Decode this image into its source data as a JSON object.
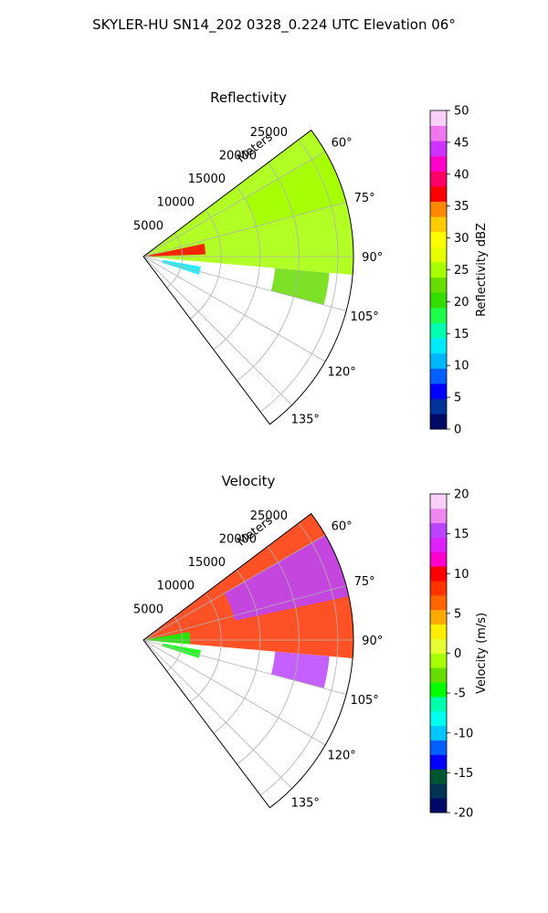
{
  "title": "SKYLER-HU  SN14_202  0328_0.224 UTC Elevation 06°",
  "chart_data": [
    {
      "type": "heatmap",
      "projection": "polar-sector",
      "title": "Reflectivity",
      "radial_label": "Meters",
      "radial_ticks": [
        "5000",
        "10000",
        "15000",
        "20000",
        "25000"
      ],
      "radial_tick_values": [
        5000,
        10000,
        15000,
        20000,
        25000
      ],
      "radial_max": 27000,
      "azimuth_range": [
        53,
        143
      ],
      "azimuth_ticks": [
        "60°",
        "75°",
        "90°",
        "105°",
        "120°",
        "135°"
      ],
      "azimuth_tick_values": [
        60,
        75,
        90,
        105,
        120,
        135
      ],
      "grid": true,
      "colorbar": {
        "label": "Reflectivity dBZ",
        "range": [
          0,
          50
        ],
        "ticks": [
          "0",
          "5",
          "10",
          "15",
          "20",
          "25",
          "30",
          "35",
          "40",
          "45",
          "50"
        ],
        "colors": [
          "#000a66",
          "#003399",
          "#0000ff",
          "#005fff",
          "#00b7ff",
          "#00eaff",
          "#00ffb0",
          "#1dff4a",
          "#33dd00",
          "#66dd00",
          "#a5ff00",
          "#e6ff00",
          "#ffff00",
          "#ffcc00",
          "#ff8800",
          "#ff0000",
          "#ff0066",
          "#ff00cc",
          "#cc33ff",
          "#ee77ee",
          "#f8d0f8"
        ]
      },
      "echo_regions": [
        {
          "az": [
            53,
            95
          ],
          "r": [
            0,
            27000
          ],
          "value": 24
        },
        {
          "az": [
            60,
            75
          ],
          "r": [
            15000,
            27000
          ],
          "value": 26
        },
        {
          "az": [
            78,
            88
          ],
          "r": [
            0,
            8000
          ],
          "value": 36
        },
        {
          "az": [
            95,
            105
          ],
          "r": [
            17000,
            24000
          ],
          "value": 22
        },
        {
          "az": [
            100,
            108
          ],
          "r": [
            2500,
            7500
          ],
          "value": 12
        }
      ]
    },
    {
      "type": "heatmap",
      "projection": "polar-sector",
      "title": "Velocity",
      "radial_label": "Meters",
      "radial_ticks": [
        "5000",
        "10000",
        "15000",
        "20000",
        "25000"
      ],
      "radial_tick_values": [
        5000,
        10000,
        15000,
        20000,
        25000
      ],
      "radial_max": 27000,
      "azimuth_range": [
        53,
        143
      ],
      "azimuth_ticks": [
        "60°",
        "75°",
        "90°",
        "105°",
        "120°",
        "135°"
      ],
      "azimuth_tick_values": [
        60,
        75,
        90,
        105,
        120,
        135
      ],
      "grid": true,
      "colorbar": {
        "label": "Velocity (m/s)",
        "range": [
          -20,
          20
        ],
        "ticks": [
          "-20",
          "-15",
          "-10",
          "-5",
          "0",
          "5",
          "10",
          "15",
          "20"
        ],
        "colors": [
          "#000a66",
          "#003355",
          "#005533",
          "#0000ff",
          "#005fff",
          "#00c8ff",
          "#00ffee",
          "#00ffaa",
          "#00ff00",
          "#66dd00",
          "#a5ff00",
          "#e6ff33",
          "#ffee00",
          "#ffaa00",
          "#ff6600",
          "#ff3300",
          "#ff0000",
          "#ff00cc",
          "#dd22ff",
          "#bb44ff",
          "#ee88ee",
          "#f8d0f8"
        ]
      },
      "echo_regions": [
        {
          "az": [
            53,
            95
          ],
          "r": [
            0,
            27000
          ],
          "value": 9
        },
        {
          "az": [
            60,
            78
          ],
          "r": [
            12000,
            27000
          ],
          "value": 15
        },
        {
          "az": [
            80,
            95
          ],
          "r": [
            0,
            6000
          ],
          "value": -5
        },
        {
          "az": [
            95,
            105
          ],
          "r": [
            17000,
            24000
          ],
          "value": 16
        },
        {
          "az": [
            100,
            108
          ],
          "r": [
            2500,
            7500
          ],
          "value": -5
        }
      ]
    }
  ]
}
